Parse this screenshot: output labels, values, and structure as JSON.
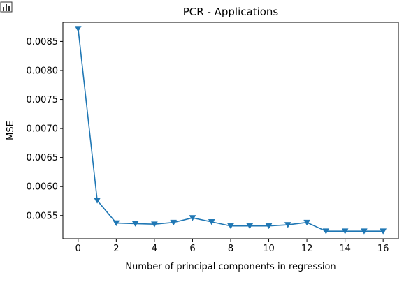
{
  "toolbar": {
    "icon": "bar-chart-icon"
  },
  "chart_data": {
    "type": "line",
    "title": "PCR - Applications",
    "xlabel": "Number of principal components in regression",
    "ylabel": "MSE",
    "xlim": [
      -0.8,
      16.8
    ],
    "ylim": [
      0.0051,
      0.00883
    ],
    "xticks": [
      0,
      2,
      4,
      6,
      8,
      10,
      12,
      14,
      16
    ],
    "yticks": [
      0.0055,
      0.006,
      0.0065,
      0.007,
      0.0075,
      0.008,
      0.0085
    ],
    "ytick_labels": [
      "0.0055",
      "0.0060",
      "0.0065",
      "0.0070",
      "0.0075",
      "0.0080",
      "0.0085"
    ],
    "grid": false,
    "marker": "triangle-down",
    "color": "#1f77b4",
    "series": [
      {
        "x": [
          0,
          1,
          2,
          3,
          4,
          5,
          6,
          7,
          8,
          9,
          10,
          11,
          12,
          13,
          14,
          15,
          16
        ],
        "values": [
          0.00872,
          0.00576,
          0.00537,
          0.00536,
          0.00535,
          0.00538,
          0.00546,
          0.00539,
          0.00532,
          0.00532,
          0.00532,
          0.00534,
          0.00538,
          0.00523,
          0.00523,
          0.00523,
          0.00523
        ]
      }
    ]
  }
}
